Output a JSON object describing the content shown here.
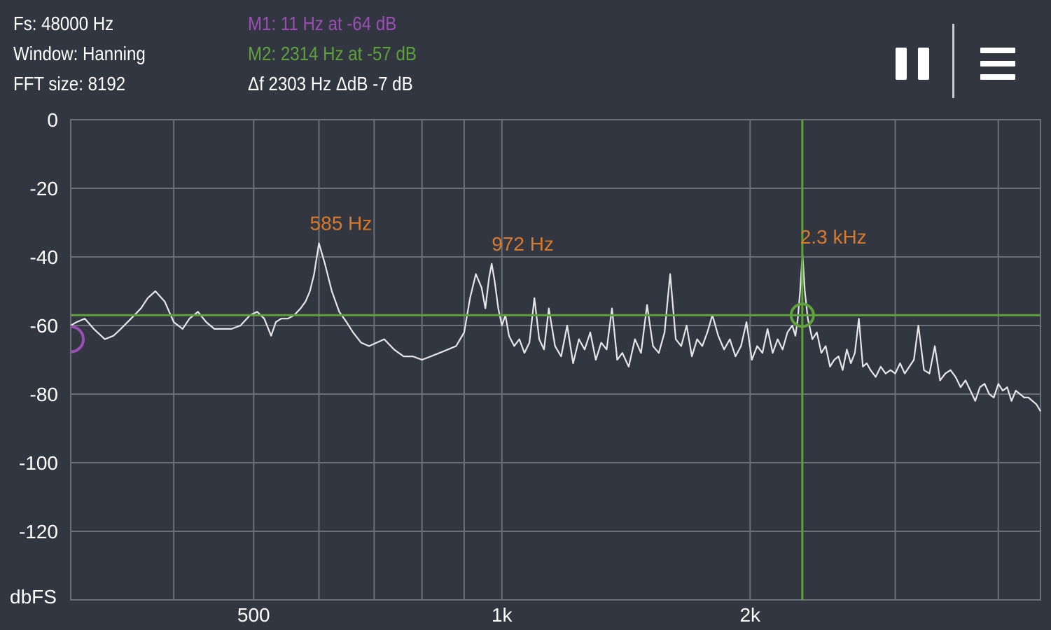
{
  "info": {
    "fs": "Fs: 48000 Hz",
    "window": "Window: Hanning",
    "fft_size": "FFT size: 8192"
  },
  "markers": {
    "m1": "M1: 11 Hz at -64 dB",
    "m2": "M2: 2314 Hz at -57 dB",
    "delta": "Δf 2303 Hz ΔdB -7 dB"
  },
  "toolbar": {
    "pause_icon": "pause-icon",
    "menu_icon": "menu-icon"
  },
  "colors": {
    "background": "#323640",
    "grid": "#6b6f78",
    "trace": "#e6e6e6",
    "marker1": "#9b4fb4",
    "marker2": "#5fa13b",
    "peak_label": "#d97a2a"
  },
  "chart_data": {
    "type": "line",
    "x_scale": "log",
    "xlim": [
      300,
      4500
    ],
    "ylim": [
      -140,
      0
    ],
    "ylabel": "dbFS",
    "y_ticks": [
      "0",
      "-20",
      "-40",
      "-60",
      "-80",
      "-100",
      "-120"
    ],
    "y_tick_values": [
      0,
      -20,
      -40,
      -60,
      -80,
      -100,
      -120
    ],
    "x_tick_labels": [
      {
        "value": 500,
        "label": "500"
      },
      {
        "value": 1000,
        "label": "1k"
      },
      {
        "value": 2000,
        "label": "2k"
      }
    ],
    "x_gridlines": [
      300,
      400,
      500,
      600,
      700,
      800,
      900,
      1000,
      2000,
      3000,
      4000
    ],
    "peak_labels": [
      {
        "freq": 585,
        "db": -35,
        "label": "585 Hz"
      },
      {
        "freq": 972,
        "db": -41,
        "label": "972 Hz"
      },
      {
        "freq": 2300,
        "db": -39,
        "label": "2.3  kHz"
      }
    ],
    "marker2": {
      "freq": 2314,
      "db": -57
    },
    "series": [
      {
        "x": [
          300,
          305,
          312,
          320,
          330,
          338,
          345,
          355,
          365,
          372,
          380,
          390,
          400,
          410,
          418,
          428,
          438,
          448,
          458,
          470,
          482,
          495,
          505,
          515,
          525,
          532,
          540,
          550,
          560,
          570,
          578,
          585,
          592,
          600,
          610,
          622,
          635,
          648,
          660,
          675,
          690,
          705,
          720,
          740,
          760,
          780,
          800,
          820,
          840,
          860,
          880,
          900,
          915,
          930,
          945,
          955,
          965,
          972,
          980,
          990,
          1000,
          1010,
          1020,
          1035,
          1050,
          1065,
          1080,
          1095,
          1110,
          1125,
          1140,
          1160,
          1180,
          1200,
          1220,
          1240,
          1260,
          1280,
          1300,
          1320,
          1340,
          1360,
          1380,
          1400,
          1425,
          1450,
          1475,
          1500,
          1525,
          1550,
          1575,
          1600,
          1625,
          1650,
          1675,
          1700,
          1725,
          1750,
          1775,
          1800,
          1830,
          1860,
          1890,
          1920,
          1950,
          1980,
          2010,
          2040,
          2070,
          2100,
          2130,
          2160,
          2190,
          2220,
          2250,
          2270,
          2285,
          2300,
          2315,
          2330,
          2350,
          2380,
          2410,
          2440,
          2470,
          2500,
          2530,
          2560,
          2590,
          2620,
          2650,
          2680,
          2710,
          2740,
          2770,
          2800,
          2840,
          2880,
          2920,
          2960,
          3000,
          3040,
          3080,
          3120,
          3160,
          3200,
          3250,
          3300,
          3350,
          3400,
          3450,
          3500,
          3550,
          3600,
          3650,
          3700,
          3750,
          3800,
          3850,
          3900,
          3950,
          4000,
          4050,
          4100,
          4150,
          4200,
          4250,
          4300,
          4350,
          4400,
          4450,
          4500
        ],
        "y": [
          -60,
          -59,
          -58,
          -61,
          -64,
          -63,
          -61,
          -58,
          -55,
          -52,
          -50,
          -53,
          -59,
          -61,
          -58,
          -56,
          -59,
          -61,
          -61,
          -61,
          -60,
          -57,
          -56,
          -58,
          -63,
          -59,
          -58,
          -58,
          -57,
          -55,
          -53,
          -50,
          -45,
          -36,
          -42,
          -50,
          -56,
          -59,
          -62,
          -65,
          -66,
          -65,
          -64,
          -67,
          -69,
          -69,
          -70,
          -69,
          -68,
          -67,
          -66,
          -62,
          -52,
          -45,
          -49,
          -55,
          -46,
          -42,
          -47,
          -55,
          -60,
          -57,
          -63,
          -66,
          -64,
          -68,
          -65,
          -52,
          -64,
          -67,
          -55,
          -66,
          -69,
          -60,
          -71,
          -64,
          -67,
          -62,
          -70,
          -65,
          -67,
          -55,
          -70,
          -68,
          -72,
          -64,
          -68,
          -54,
          -66,
          -68,
          -62,
          -45,
          -64,
          -66,
          -60,
          -69,
          -64,
          -66,
          -62,
          -57,
          -63,
          -67,
          -64,
          -69,
          -66,
          -59,
          -70,
          -66,
          -68,
          -61,
          -68,
          -64,
          -67,
          -62,
          -60,
          -63,
          -58,
          -50,
          -39,
          -50,
          -58,
          -64,
          -62,
          -68,
          -66,
          -72,
          -70,
          -69,
          -73,
          -67,
          -71,
          -68,
          -58,
          -72,
          -71,
          -73,
          -75,
          -72,
          -74,
          -73,
          -74,
          -71,
          -74,
          -72,
          -70,
          -60,
          -73,
          -74,
          -66,
          -76,
          -74,
          -73,
          -75,
          -78,
          -76,
          -79,
          -82,
          -78,
          -77,
          -80,
          -81,
          -77,
          -79,
          -78,
          -82,
          -79,
          -80,
          -81,
          -81,
          -82,
          -83,
          -85
        ]
      }
    ],
    "annotations": {
      "x_markers": [
        {
          "freq": 2300,
          "label": "2.3  kHz"
        }
      ]
    }
  }
}
